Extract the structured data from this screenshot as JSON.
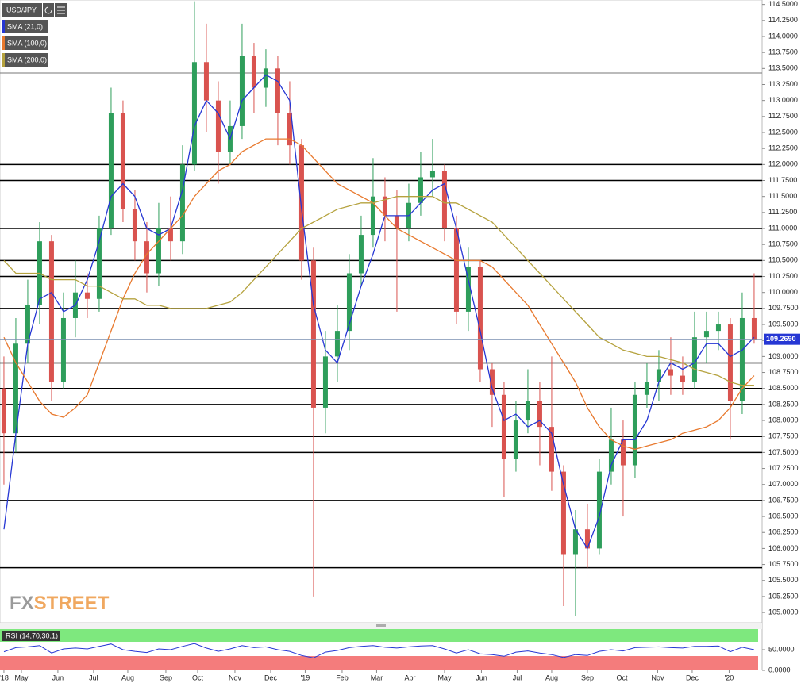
{
  "chart_data": [
    {
      "type": "candlestick",
      "title": "USD/JPY",
      "watermark": [
        "FX",
        "STREET"
      ],
      "up_color": "#2e9e5b",
      "down_color": "#d9534f",
      "xlim": [
        -0.33,
        63.67
      ],
      "xticks": [
        {
          "value": 0,
          "label": "'18"
        },
        {
          "value": 1.47,
          "label": "May"
        },
        {
          "value": 4.53,
          "label": "Jun"
        },
        {
          "value": 7.53,
          "label": "Jul"
        },
        {
          "value": 10.4,
          "label": "Aug"
        },
        {
          "value": 13.6,
          "label": "Sep"
        },
        {
          "value": 16.27,
          "label": "Oct"
        },
        {
          "value": 19.4,
          "label": "Nov"
        },
        {
          "value": 22.4,
          "label": "Dec"
        },
        {
          "value": 25.3,
          "label": "'19"
        },
        {
          "value": 28.4,
          "label": "Feb"
        },
        {
          "value": 31.3,
          "label": "Mar"
        },
        {
          "value": 34.1,
          "label": "Apr"
        },
        {
          "value": 37,
          "label": "May"
        },
        {
          "value": 40.1,
          "label": "Jun"
        },
        {
          "value": 43.1,
          "label": "Jul"
        },
        {
          "value": 46,
          "label": "Aug"
        },
        {
          "value": 49,
          "label": "Sep"
        },
        {
          "value": 51.9,
          "label": "Oct"
        },
        {
          "value": 54.9,
          "label": "Nov"
        },
        {
          "value": 57.8,
          "label": "Dec"
        },
        {
          "value": 60.9,
          "label": "'20"
        }
      ],
      "ylim": [
        104.84,
        114.57
      ],
      "yticks": [
        {
          "value": 114.5,
          "label": "114.5000"
        },
        {
          "value": 114.25,
          "label": "114.2500"
        },
        {
          "value": 114,
          "label": "114.0000"
        },
        {
          "value": 113.75,
          "label": "113.7500"
        },
        {
          "value": 113.5,
          "label": "113.5000"
        },
        {
          "value": 113.25,
          "label": "113.2500"
        },
        {
          "value": 113,
          "label": "113.0000"
        },
        {
          "value": 112.75,
          "label": "112.7500"
        },
        {
          "value": 112.5,
          "label": "112.5000"
        },
        {
          "value": 112.25,
          "label": "112.2500"
        },
        {
          "value": 112,
          "label": "112.0000"
        },
        {
          "value": 111.75,
          "label": "111.7500"
        },
        {
          "value": 111.5,
          "label": "111.5000"
        },
        {
          "value": 111.25,
          "label": "111.2500"
        },
        {
          "value": 111,
          "label": "111.0000"
        },
        {
          "value": 110.75,
          "label": "110.7500"
        },
        {
          "value": 110.5,
          "label": "110.5000"
        },
        {
          "value": 110.25,
          "label": "110.2500"
        },
        {
          "value": 110,
          "label": "110.0000"
        },
        {
          "value": 109.75,
          "label": "109.7500"
        },
        {
          "value": 109.5,
          "label": "109.5000"
        },
        {
          "value": 109.25,
          "label": "109.2500"
        },
        {
          "value": 109,
          "label": "109.0000"
        },
        {
          "value": 108.75,
          "label": "108.7500"
        },
        {
          "value": 108.5,
          "label": "108.5000"
        },
        {
          "value": 108.25,
          "label": "108.2500"
        },
        {
          "value": 108,
          "label": "108.0000"
        },
        {
          "value": 107.75,
          "label": "107.7500"
        },
        {
          "value": 107.5,
          "label": "107.5000"
        },
        {
          "value": 107.25,
          "label": "107.2500"
        },
        {
          "value": 107,
          "label": "107.0000"
        },
        {
          "value": 106.75,
          "label": "106.7500"
        },
        {
          "value": 106.5,
          "label": "106.5000"
        },
        {
          "value": 106.25,
          "label": "106.2500"
        },
        {
          "value": 106,
          "label": "106.0000"
        },
        {
          "value": 105.75,
          "label": "105.7500"
        },
        {
          "value": 105.5,
          "label": "105.5000"
        },
        {
          "value": 105.25,
          "label": "105.2500"
        },
        {
          "value": 105,
          "label": "105.0000"
        }
      ],
      "open": [
        108.5,
        107.8,
        109.2,
        109.8,
        110.8,
        108.6,
        109.6,
        110.0,
        109.9,
        111.0,
        112.8,
        111.3,
        110.8,
        110.3,
        111.0,
        110.8,
        112.0,
        113.6,
        113.0,
        112.2,
        112.6,
        113.7,
        113.2,
        113.5,
        112.8,
        112.3,
        110.5,
        108.2,
        109.0,
        109.4,
        110.3,
        110.9,
        111.5,
        111.2,
        111.0,
        111.4,
        111.8,
        111.9,
        111.0,
        109.7,
        110.4,
        108.8,
        108.4,
        107.4,
        108.0,
        108.3,
        107.9,
        107.2,
        105.9,
        106.3,
        106.0,
        107.2,
        107.7,
        107.3,
        108.4,
        108.6,
        108.8,
        108.7,
        108.6,
        109.3,
        109.4,
        109.5,
        108.3,
        109.6
      ],
      "high": [
        109.0,
        109.6,
        110.2,
        111.1,
        110.9,
        110.0,
        110.5,
        110.3,
        111.2,
        113.2,
        113.0,
        111.6,
        111.1,
        111.4,
        111.5,
        112.3,
        114.55,
        114.2,
        113.3,
        113.0,
        114.2,
        113.9,
        113.8,
        113.7,
        113.3,
        112.4,
        110.7,
        109.4,
        109.8,
        110.6,
        111.2,
        112.1,
        111.8,
        111.6,
        111.7,
        112.2,
        112.4,
        112.0,
        111.2,
        110.7,
        110.5,
        108.9,
        108.6,
        108.3,
        108.8,
        108.6,
        109.0,
        107.3,
        106.6,
        106.7,
        107.4,
        108.2,
        108.0,
        108.6,
        108.9,
        109.1,
        109.3,
        109.0,
        109.7,
        109.7,
        109.7,
        109.6,
        110.0,
        110.3
      ],
      "low": [
        107.0,
        107.5,
        108.9,
        109.5,
        108.3,
        108.5,
        109.3,
        109.6,
        109.7,
        110.9,
        111.1,
        110.5,
        110.0,
        110.1,
        110.5,
        110.6,
        111.9,
        112.5,
        111.7,
        112.0,
        112.4,
        112.8,
        112.9,
        112.3,
        112.0,
        110.2,
        105.25,
        107.8,
        108.6,
        109.1,
        110.1,
        110.7,
        110.8,
        109.7,
        110.8,
        111.2,
        111.5,
        110.8,
        109.5,
        109.4,
        108.6,
        107.9,
        106.8,
        107.2,
        107.8,
        107.3,
        106.9,
        105.1,
        104.95,
        105.7,
        105.9,
        107.0,
        106.5,
        107.1,
        108.2,
        108.3,
        108.4,
        108.4,
        108.5,
        108.9,
        109.1,
        107.7,
        108.1,
        109.2
      ],
      "close": [
        107.8,
        109.2,
        109.8,
        110.8,
        108.6,
        109.6,
        110.0,
        109.9,
        111.0,
        112.8,
        111.3,
        110.8,
        110.3,
        111.0,
        110.8,
        112.0,
        113.6,
        113.0,
        112.2,
        112.6,
        113.7,
        113.2,
        113.5,
        112.8,
        112.3,
        110.5,
        108.2,
        109.0,
        109.4,
        110.3,
        110.9,
        111.5,
        111.2,
        111.0,
        111.4,
        111.8,
        111.9,
        111.0,
        109.7,
        110.4,
        108.8,
        108.4,
        107.4,
        108.0,
        108.3,
        107.9,
        107.2,
        105.9,
        106.3,
        106.0,
        107.2,
        107.7,
        107.3,
        108.4,
        108.6,
        108.8,
        108.7,
        108.6,
        109.3,
        109.4,
        109.5,
        108.3,
        109.6,
        109.27
      ],
      "series": [
        {
          "name": "SMA (21,0)",
          "color": "#2637d4",
          "values": [
            106.3,
            107.8,
            109.2,
            109.9,
            110.0,
            109.7,
            109.8,
            110.2,
            110.8,
            111.5,
            111.7,
            111.5,
            111.0,
            110.9,
            111.0,
            111.6,
            112.6,
            113.0,
            112.8,
            112.4,
            113.0,
            113.2,
            113.4,
            113.3,
            113.0,
            111.3,
            109.8,
            109.1,
            108.9,
            109.5,
            110.1,
            110.6,
            111.2,
            111.2,
            111.2,
            111.4,
            111.6,
            111.7,
            111.0,
            110.2,
            109.4,
            108.5,
            108.0,
            108.1,
            107.9,
            108.0,
            107.8,
            107.0,
            106.3,
            106.0,
            106.5,
            107.3,
            107.7,
            107.7,
            108.0,
            108.6,
            108.9,
            108.8,
            108.9,
            109.2,
            109.2,
            109.0,
            109.1,
            109.3
          ]
        },
        {
          "name": "SMA (100,0)",
          "color": "#e8792e",
          "values": [
            109.3,
            108.9,
            108.6,
            108.3,
            108.1,
            108.05,
            108.2,
            108.4,
            108.9,
            109.4,
            109.9,
            110.3,
            110.6,
            110.8,
            111.0,
            111.2,
            111.5,
            111.7,
            111.9,
            112.0,
            112.2,
            112.3,
            112.4,
            112.4,
            112.4,
            112.3,
            112.1,
            111.9,
            111.7,
            111.6,
            111.5,
            111.4,
            111.2,
            111.0,
            110.9,
            110.8,
            110.7,
            110.6,
            110.5,
            110.5,
            110.5,
            110.4,
            110.2,
            110.0,
            109.8,
            109.5,
            109.2,
            108.9,
            108.6,
            108.2,
            107.9,
            107.7,
            107.6,
            107.55,
            107.6,
            107.65,
            107.7,
            107.8,
            107.85,
            107.9,
            108.0,
            108.2,
            108.5,
            108.7
          ]
        },
        {
          "name": "SMA (200,0)",
          "color": "#b5a23e",
          "values": [
            110.5,
            110.3,
            110.3,
            110.3,
            110.2,
            110.2,
            110.2,
            110.1,
            110.1,
            110.0,
            109.9,
            109.9,
            109.8,
            109.8,
            109.75,
            109.75,
            109.75,
            109.75,
            109.8,
            109.85,
            110.0,
            110.2,
            110.4,
            110.6,
            110.8,
            111.0,
            111.1,
            111.2,
            111.3,
            111.35,
            111.4,
            111.4,
            111.45,
            111.5,
            111.5,
            111.5,
            111.5,
            111.4,
            111.4,
            111.3,
            111.2,
            111.1,
            110.9,
            110.7,
            110.5,
            110.3,
            110.1,
            109.9,
            109.7,
            109.5,
            109.3,
            109.2,
            109.1,
            109.05,
            109.0,
            109.0,
            108.95,
            108.9,
            108.8,
            108.75,
            108.7,
            108.6,
            108.55,
            108.55
          ]
        }
      ],
      "reference_line": 113.43,
      "levels": [
        112.0,
        111.75,
        111.0,
        110.5,
        110.25,
        109.75,
        108.9,
        108.5,
        108.25,
        107.75,
        107.5,
        106.75,
        105.7
      ],
      "last_price": {
        "value": 109.269,
        "label": "109.2690"
      }
    },
    {
      "type": "line",
      "title": "RSI (14,70,30,1)",
      "color": "#2637d4",
      "ylim": [
        0,
        100
      ],
      "yticks": [
        {
          "value": 50,
          "label": "50.0000"
        },
        {
          "value": 0,
          "label": "0.0000"
        }
      ],
      "values": [
        45,
        55,
        57,
        60,
        42,
        52,
        54,
        52,
        58,
        64,
        50,
        46,
        43,
        52,
        50,
        58,
        65,
        54,
        46,
        52,
        60,
        55,
        57,
        50,
        46,
        36,
        30,
        44,
        48,
        55,
        58,
        60,
        56,
        54,
        57,
        59,
        60,
        52,
        42,
        50,
        40,
        38,
        34,
        44,
        47,
        42,
        38,
        31,
        38,
        36,
        46,
        50,
        47,
        55,
        56,
        57,
        55,
        54,
        58,
        58,
        59,
        45,
        56,
        50
      ]
    }
  ]
}
